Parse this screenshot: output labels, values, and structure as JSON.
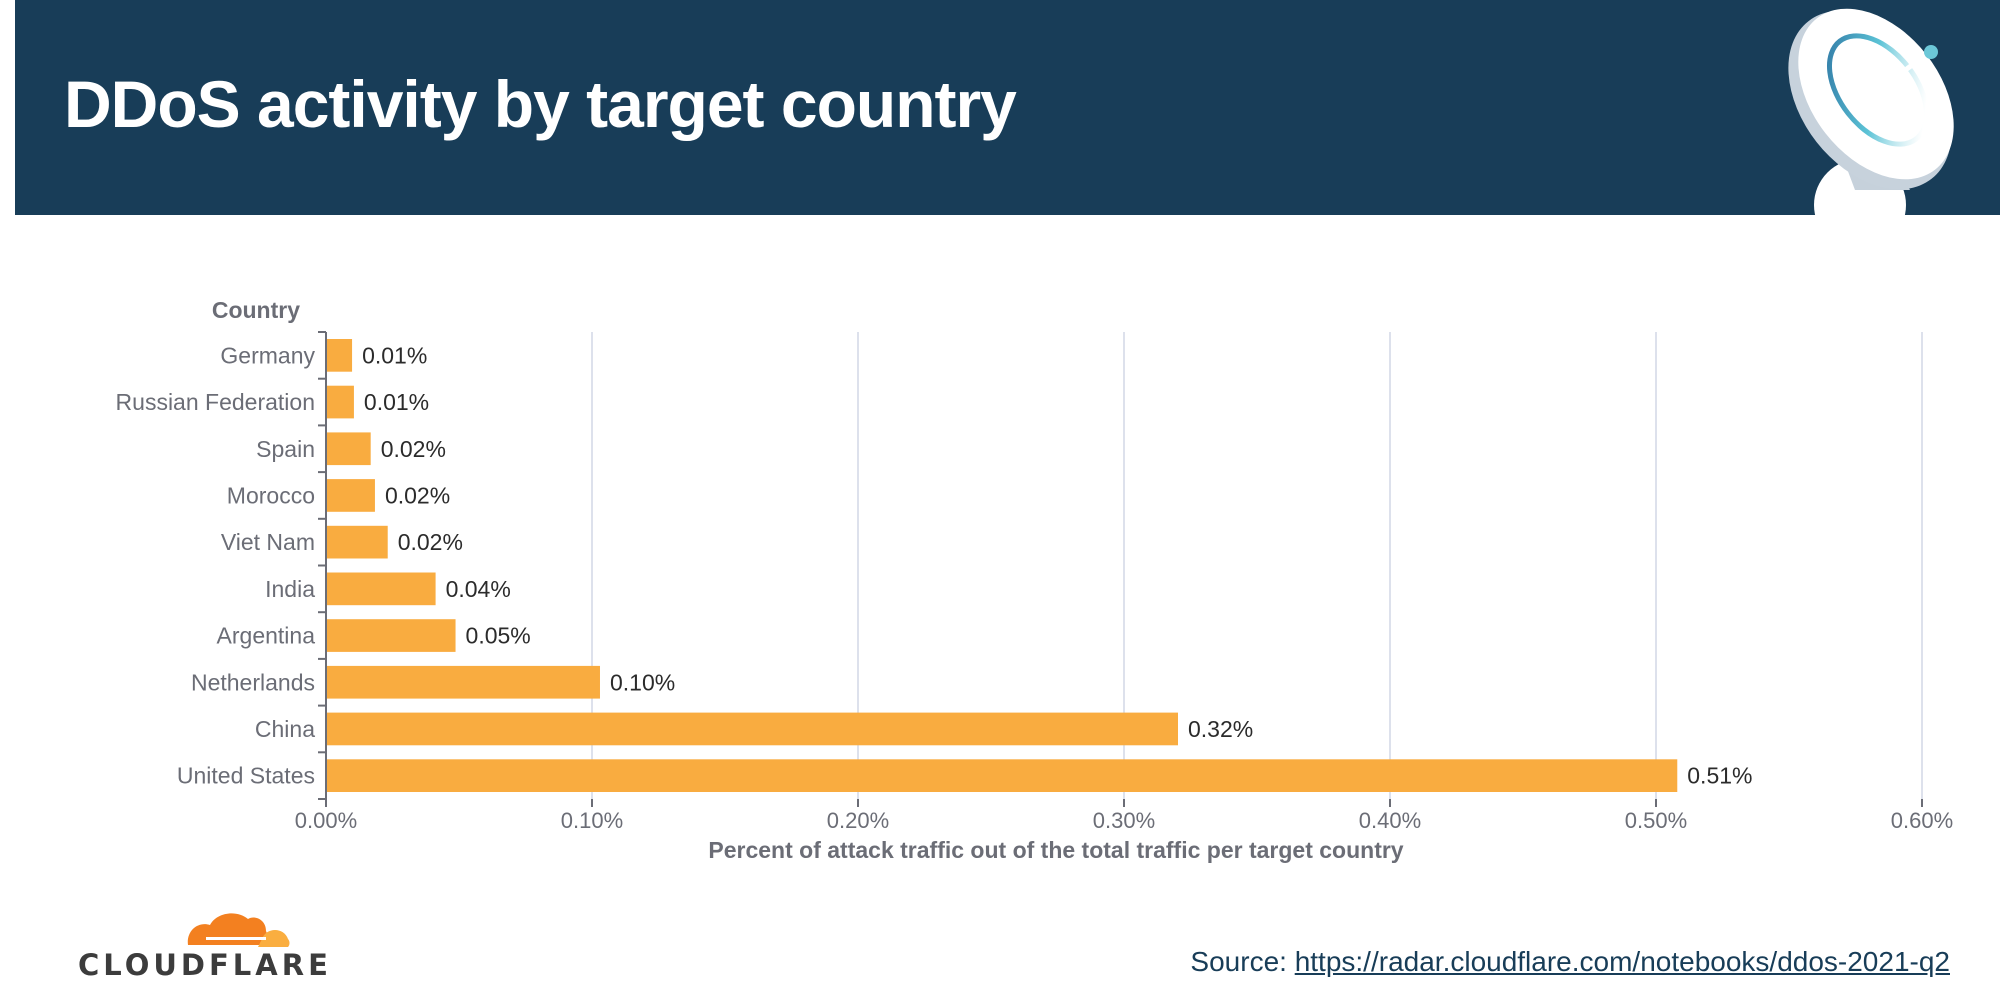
{
  "header": {
    "title": "DDoS activity by target country",
    "background_color": "#183d58",
    "icon": "satellite-dish-icon"
  },
  "chart_data": {
    "type": "bar",
    "orientation": "horizontal",
    "title": "DDoS activity by target country",
    "ylabel": "Country",
    "xlabel": "Percent of attack traffic out of the total traffic per target country",
    "categories": [
      "Germany",
      "Russian Federation",
      "Spain",
      "Morocco",
      "Viet Nam",
      "India",
      "Argentina",
      "Netherlands",
      "China",
      "United States"
    ],
    "values": [
      0.0098,
      0.0105,
      0.0168,
      0.0184,
      0.0232,
      0.0412,
      0.0487,
      0.103,
      0.3203,
      0.508
    ],
    "data_labels": [
      "0.01%",
      "0.01%",
      "0.02%",
      "0.02%",
      "0.02%",
      "0.04%",
      "0.05%",
      "0.10%",
      "0.32%",
      "0.51%"
    ],
    "xlim": [
      0,
      0.6
    ],
    "x_ticks": [
      0,
      0.1,
      0.2,
      0.3,
      0.4,
      0.5,
      0.6
    ],
    "x_tick_labels": [
      "0.00%",
      "0.10%",
      "0.20%",
      "0.30%",
      "0.40%",
      "0.50%",
      "0.60%"
    ],
    "grid": "vertical",
    "legend": "none",
    "bar_color": "#f9ac40",
    "grid_color": "#dde1ec"
  },
  "footer": {
    "brand": "CLOUDFLARE",
    "brand_icon": "cloudflare-cloud-logo",
    "source_label": "Source:",
    "source_link": "https://radar.cloudflare.com/notebooks/ddos-2021-q2"
  }
}
